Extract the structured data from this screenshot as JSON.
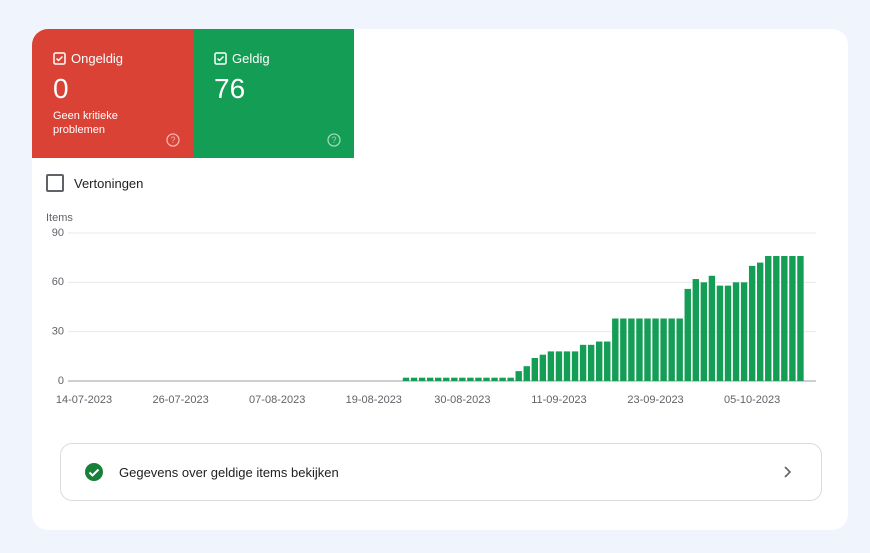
{
  "tiles": [
    {
      "label": "Ongeldig",
      "count": "0",
      "note": "Geen kritieke problemen"
    },
    {
      "label": "Geldig",
      "count": "76"
    }
  ],
  "checkbox_label": "Vertoningen",
  "chart_data": {
    "type": "bar",
    "y_label": "Items",
    "color": "#149d54",
    "categories": [
      "14-07-2023",
      null,
      null,
      null,
      null,
      null,
      null,
      null,
      null,
      null,
      null,
      null,
      "26-07-2023",
      null,
      null,
      null,
      null,
      null,
      null,
      null,
      null,
      null,
      null,
      null,
      "07-08-2023",
      null,
      null,
      null,
      null,
      null,
      null,
      null,
      null,
      null,
      null,
      null,
      "19-08-2023",
      null,
      null,
      null,
      null,
      null,
      null,
      null,
      null,
      null,
      null,
      "30-08-2023",
      null,
      null,
      null,
      null,
      null,
      null,
      null,
      null,
      null,
      null,
      null,
      "11-09-2023",
      null,
      null,
      null,
      null,
      null,
      null,
      null,
      null,
      null,
      null,
      null,
      "23-09-2023",
      null,
      null,
      null,
      null,
      null,
      null,
      null,
      null,
      null,
      null,
      null,
      "05-10-2023",
      null,
      null,
      null,
      null,
      null,
      null
    ],
    "values": [
      0,
      0,
      0,
      0,
      0,
      0,
      0,
      0,
      0,
      0,
      0,
      0,
      0,
      0,
      0,
      0,
      0,
      0,
      0,
      0,
      0,
      0,
      0,
      0,
      0,
      0,
      0,
      0,
      0,
      0,
      0,
      0,
      0,
      0,
      0,
      0,
      0,
      0,
      0,
      0,
      2,
      2,
      2,
      2,
      2,
      2,
      2,
      2,
      2,
      2,
      2,
      2,
      2,
      2,
      6,
      9,
      14,
      16,
      18,
      18,
      18,
      18,
      22,
      22,
      24,
      24,
      38,
      38,
      38,
      38,
      38,
      38,
      38,
      38,
      38,
      56,
      62,
      60,
      64,
      58,
      58,
      60,
      60,
      70,
      72,
      76,
      76,
      76,
      76,
      76
    ],
    "ylim": [
      0,
      90
    ],
    "yticks": [
      0,
      30,
      60,
      90
    ],
    "grid": true
  },
  "button": {
    "label": "Gegevens over geldige items bekijken"
  }
}
